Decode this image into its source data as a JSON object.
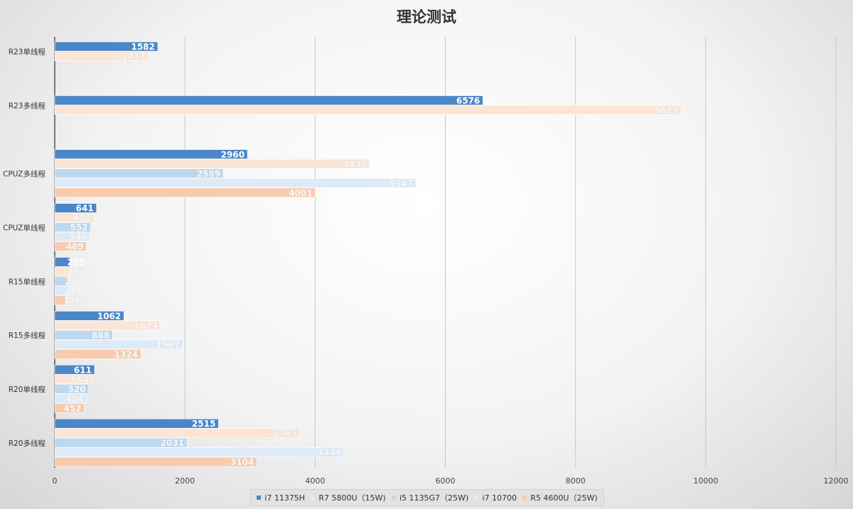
{
  "chart_data": {
    "type": "bar",
    "orientation": "horizontal",
    "title": "理论测试",
    "xlabel": "",
    "ylabel": "",
    "xlim": [
      0,
      12000
    ],
    "x_ticks": [
      0,
      2000,
      4000,
      6000,
      8000,
      10000,
      12000
    ],
    "grid": true,
    "legend_position": "bottom",
    "categories": [
      "R23单线程",
      "R23多线程",
      "CPUZ多线程",
      "CPUZ单线程",
      "R15单线程",
      "R15多线程",
      "R20单线程",
      "R20多线程"
    ],
    "series": [
      {
        "name": "i7 11375H",
        "color": "#4a86c8",
        "values": [
          1582,
          6576,
          2960,
          641,
          235,
          1062,
          611,
          2515
        ]
      },
      {
        "name": "R7 5800U（15W)",
        "color": "#fbe5d6",
        "values": [
          1437,
          9623,
          4835,
          608,
          233,
          1624,
          564,
          3765
        ]
      },
      {
        "name": "i5 1135G7（25W)",
        "color": "#bdd7ee",
        "values": [
          null,
          null,
          2589,
          552,
          200,
          888,
          520,
          2031
        ]
      },
      {
        "name": "i7 10700",
        "color": "#deebf7",
        "values": [
          null,
          null,
          5547,
          546,
          206,
          1967,
          484,
          4444
        ]
      },
      {
        "name": "R5 4600U（25W)",
        "color": "#f8cbad",
        "values": [
          null,
          null,
          4001,
          489,
          176,
          1324,
          452,
          3104
        ]
      }
    ]
  }
}
